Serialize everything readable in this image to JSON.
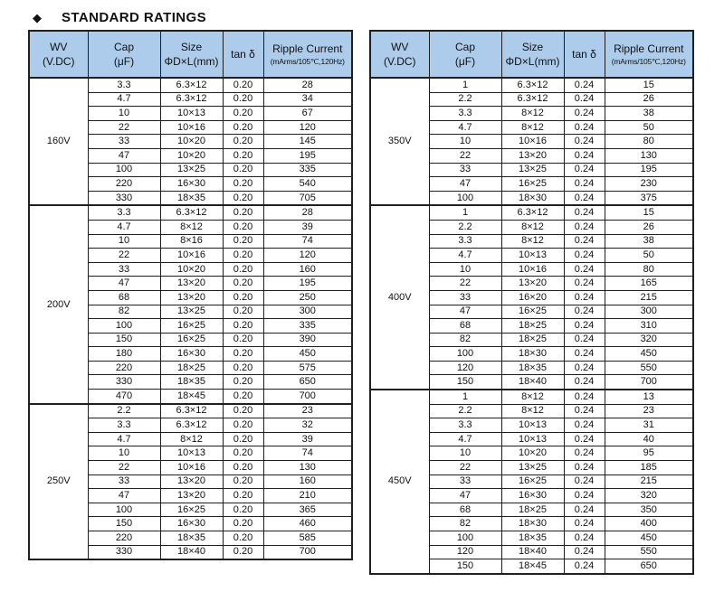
{
  "page": {
    "bullet": "◆",
    "title": "STANDARD RATINGS"
  },
  "colors": {
    "header_bg": "#adcbea",
    "border": "#1f1f1f",
    "text": "#111111",
    "page_bg": "#ffffff"
  },
  "table_header": {
    "wv": {
      "line1": "WV",
      "line2": "(V.DC)"
    },
    "cap": {
      "line1": "Cap",
      "line2": "(μF)"
    },
    "size": {
      "line1": "Size",
      "line2": "ΦD×L(mm)"
    },
    "tan": {
      "line1": "tan δ"
    },
    "ripple": {
      "line1": "Ripple Current",
      "line2": "(mArms/105℃,120Hz)"
    }
  },
  "tables": [
    {
      "name": "left",
      "groups": [
        {
          "wv": "160V",
          "rows": [
            [
              "3.3",
              "6.3×12",
              "0.20",
              "28"
            ],
            [
              "4.7",
              "6.3×12",
              "0.20",
              "34"
            ],
            [
              "10",
              "10×13",
              "0.20",
              "67"
            ],
            [
              "22",
              "10×16",
              "0.20",
              "120"
            ],
            [
              "33",
              "10×20",
              "0.20",
              "145"
            ],
            [
              "47",
              "10×20",
              "0.20",
              "195"
            ],
            [
              "100",
              "13×25",
              "0.20",
              "335"
            ],
            [
              "220",
              "16×30",
              "0.20",
              "540"
            ],
            [
              "330",
              "18×35",
              "0.20",
              "705"
            ]
          ]
        },
        {
          "wv": "200V",
          "rows": [
            [
              "3.3",
              "6.3×12",
              "0.20",
              "28"
            ],
            [
              "4.7",
              "8×12",
              "0.20",
              "39"
            ],
            [
              "10",
              "8×16",
              "0.20",
              "74"
            ],
            [
              "22",
              "10×16",
              "0.20",
              "120"
            ],
            [
              "33",
              "10×20",
              "0.20",
              "160"
            ],
            [
              "47",
              "13×20",
              "0.20",
              "195"
            ],
            [
              "68",
              "13×20",
              "0.20",
              "250"
            ],
            [
              "82",
              "13×25",
              "0.20",
              "300"
            ],
            [
              "100",
              "16×25",
              "0.20",
              "335"
            ],
            [
              "150",
              "16×25",
              "0.20",
              "390"
            ],
            [
              "180",
              "16×30",
              "0.20",
              "450"
            ],
            [
              "220",
              "18×25",
              "0.20",
              "575"
            ],
            [
              "330",
              "18×35",
              "0.20",
              "650"
            ],
            [
              "470",
              "18×45",
              "0.20",
              "700"
            ]
          ]
        },
        {
          "wv": "250V",
          "rows": [
            [
              "2.2",
              "6.3×12",
              "0.20",
              "23"
            ],
            [
              "3.3",
              "6.3×12",
              "0.20",
              "32"
            ],
            [
              "4.7",
              "8×12",
              "0.20",
              "39"
            ],
            [
              "10",
              "10×13",
              "0.20",
              "74"
            ],
            [
              "22",
              "10×16",
              "0.20",
              "130"
            ],
            [
              "33",
              "13×20",
              "0.20",
              "160"
            ],
            [
              "47",
              "13×20",
              "0.20",
              "210"
            ],
            [
              "100",
              "16×25",
              "0.20",
              "365"
            ],
            [
              "150",
              "16×30",
              "0.20",
              "460"
            ],
            [
              "220",
              "18×35",
              "0.20",
              "585"
            ],
            [
              "330",
              "18×40",
              "0.20",
              "700"
            ]
          ]
        }
      ]
    },
    {
      "name": "right",
      "groups": [
        {
          "wv": "350V",
          "rows": [
            [
              "1",
              "6.3×12",
              "0.24",
              "15"
            ],
            [
              "2.2",
              "6.3×12",
              "0.24",
              "26"
            ],
            [
              "3.3",
              "8×12",
              "0.24",
              "38"
            ],
            [
              "4.7",
              "8×12",
              "0.24",
              "50"
            ],
            [
              "10",
              "10×16",
              "0.24",
              "80"
            ],
            [
              "22",
              "13×20",
              "0.24",
              "130"
            ],
            [
              "33",
              "13×25",
              "0.24",
              "195"
            ],
            [
              "47",
              "16×25",
              "0.24",
              "230"
            ],
            [
              "100",
              "18×30",
              "0.24",
              "375"
            ]
          ]
        },
        {
          "wv": "400V",
          "rows": [
            [
              "1",
              "6.3×12",
              "0.24",
              "15"
            ],
            [
              "2.2",
              "8×12",
              "0.24",
              "26"
            ],
            [
              "3.3",
              "8×12",
              "0.24",
              "38"
            ],
            [
              "4.7",
              "10×13",
              "0.24",
              "50"
            ],
            [
              "10",
              "10×16",
              "0.24",
              "80"
            ],
            [
              "22",
              "13×20",
              "0.24",
              "165"
            ],
            [
              "33",
              "16×20",
              "0.24",
              "215"
            ],
            [
              "47",
              "16×25",
              "0.24",
              "300"
            ],
            [
              "68",
              "18×25",
              "0.24",
              "310"
            ],
            [
              "82",
              "18×25",
              "0.24",
              "320"
            ],
            [
              "100",
              "18×30",
              "0.24",
              "450"
            ],
            [
              "120",
              "18×35",
              "0.24",
              "550"
            ],
            [
              "150",
              "18×40",
              "0.24",
              "700"
            ]
          ]
        },
        {
          "wv": "450V",
          "rows": [
            [
              "1",
              "8×12",
              "0.24",
              "13"
            ],
            [
              "2.2",
              "8×12",
              "0.24",
              "23"
            ],
            [
              "3.3",
              "10×13",
              "0.24",
              "31"
            ],
            [
              "4.7",
              "10×13",
              "0.24",
              "40"
            ],
            [
              "10",
              "10×20",
              "0.24",
              "95"
            ],
            [
              "22",
              "13×25",
              "0.24",
              "185"
            ],
            [
              "33",
              "16×25",
              "0.24",
              "215"
            ],
            [
              "47",
              "16×30",
              "0.24",
              "320"
            ],
            [
              "68",
              "18×25",
              "0.24",
              "350"
            ],
            [
              "82",
              "18×30",
              "0.24",
              "400"
            ],
            [
              "100",
              "18×35",
              "0.24",
              "450"
            ],
            [
              "120",
              "18×40",
              "0.24",
              "550"
            ],
            [
              "150",
              "18×45",
              "0.24",
              "650"
            ]
          ]
        }
      ]
    }
  ]
}
